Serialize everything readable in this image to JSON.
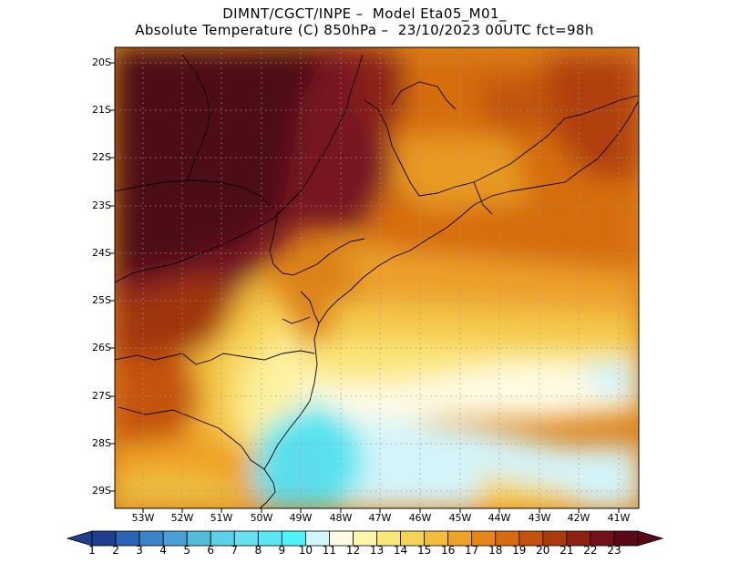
{
  "header": {
    "line1": "DIMNT/CGCT/INPE –  Model Eta05_M01_",
    "line2": "Absolute Temperature (C) 850hPa –  23/10/2023 00UTC fct=98h"
  },
  "map": {
    "lat_labels": [
      "20S",
      "21S",
      "22S",
      "23S",
      "24S",
      "25S",
      "26S",
      "27S",
      "28S",
      "29S"
    ],
    "lon_labels": [
      "53W",
      "52W",
      "51W",
      "50W",
      "49W",
      "48W",
      "47W",
      "46W",
      "45W",
      "44W",
      "43W",
      "42W",
      "41W"
    ],
    "grid": "dotted"
  },
  "colorbar": {
    "labels": [
      "1",
      "2",
      "3",
      "4",
      "5",
      "6",
      "7",
      "8",
      "9",
      "10",
      "11",
      "12",
      "13",
      "14",
      "15",
      "16",
      "17",
      "18",
      "19",
      "20",
      "21",
      "22",
      "23"
    ],
    "colors": [
      "#1f3f8e",
      "#2a64b5",
      "#3a84c8",
      "#4aa0d6",
      "#53bcd9",
      "#5bd2e8",
      "#69e0ef",
      "#5ae6f2",
      "#4df3f8",
      "#d2f6fb",
      "#fffae6",
      "#fef6a8",
      "#fbe679",
      "#f5d356",
      "#f2bc3c",
      "#eda22a",
      "#e5861a",
      "#d86a10",
      "#c4520c",
      "#aa3c0a",
      "#8c2312",
      "#74101c",
      "#5a0818"
    ]
  }
}
